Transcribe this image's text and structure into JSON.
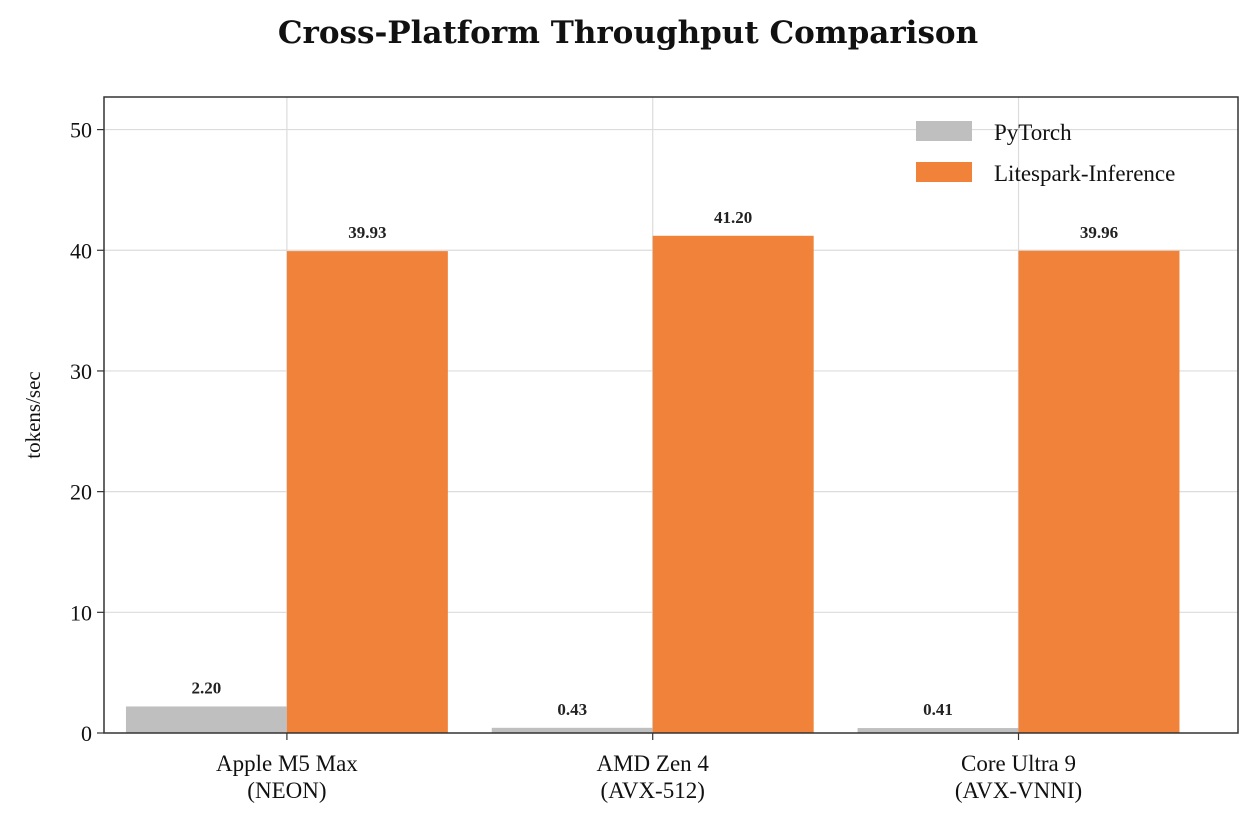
{
  "chart_data": {
    "type": "bar",
    "title": "Cross-Platform Throughput Comparison",
    "xlabel": "",
    "ylabel": "tokens/sec",
    "categories": [
      [
        "Apple M5 Max",
        "(NEON)"
      ],
      [
        "AMD Zen 4",
        "(AVX-512)"
      ],
      [
        "Core Ultra 9",
        "(AVX-VNNI)"
      ]
    ],
    "series": [
      {
        "name": "PyTorch",
        "color": "#bfbfbf",
        "values": [
          2.2,
          0.43,
          0.41
        ],
        "labels": [
          "2.20",
          "0.43",
          "0.41"
        ]
      },
      {
        "name": "Litespark-Inference",
        "color": "#f0823a",
        "values": [
          39.93,
          41.2,
          39.96
        ],
        "labels": [
          "39.93",
          "41.20",
          "39.96"
        ]
      }
    ],
    "ylim": [
      0,
      52.7
    ],
    "yticks": [
      0,
      10,
      20,
      30,
      40,
      50
    ],
    "grid": true,
    "legend": "top-right"
  }
}
